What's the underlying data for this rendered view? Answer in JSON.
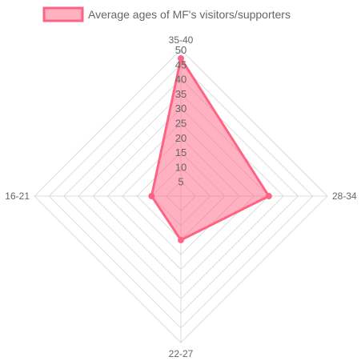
{
  "chart_data": {
    "type": "radar",
    "title": "",
    "labels": [
      "35-40",
      "28-34",
      "22-27",
      "16-21"
    ],
    "series": [
      {
        "name": "Average ages of MF's visitors/supporters",
        "values": [
          47,
          30,
          15,
          10
        ]
      }
    ],
    "r_min": 0,
    "r_max": 50,
    "tick_step": 5,
    "ticks": [
      "5",
      "10",
      "15",
      "20",
      "25",
      "30",
      "35",
      "40",
      "45",
      "50"
    ],
    "grid": true,
    "legend_position": "top",
    "colors": {
      "fill": "rgba(255,99,132,0.5)",
      "stroke": "#ff6384",
      "grid": "#dcdcdc",
      "text": "#666666"
    }
  }
}
